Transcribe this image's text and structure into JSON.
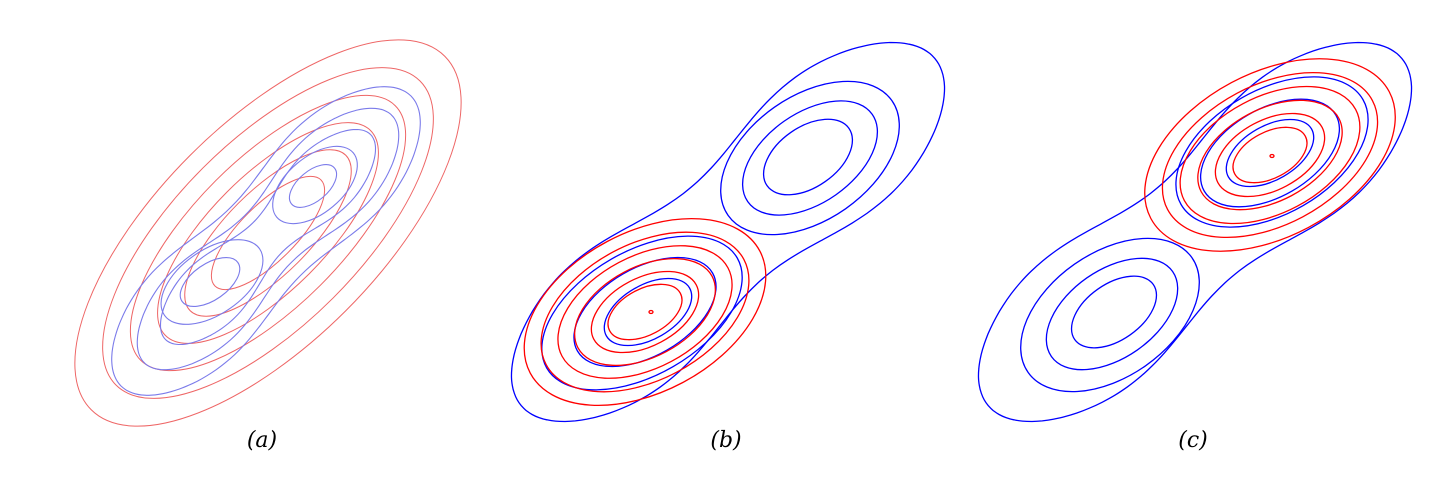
{
  "colors": {
    "background": "#ffffff",
    "red": "#ff0000",
    "blue": "#0000ff",
    "blue_light": "#7b7bea",
    "red_light": "#ee6666"
  },
  "panels": [
    {
      "id": "a",
      "label": "(a)",
      "description_contours": [
        "red-gaussian-ellipse-contours",
        "blue-bimodal-mixture-contours"
      ]
    },
    {
      "id": "b",
      "label": "(b)",
      "description_contours": [
        "blue-bimodal-mixture-contours",
        "red-gaussian-fit-lower-mode"
      ]
    },
    {
      "id": "c",
      "label": "(c)",
      "description_contours": [
        "blue-bimodal-mixture-contours",
        "red-gaussian-fit-upper-mode"
      ]
    }
  ]
}
